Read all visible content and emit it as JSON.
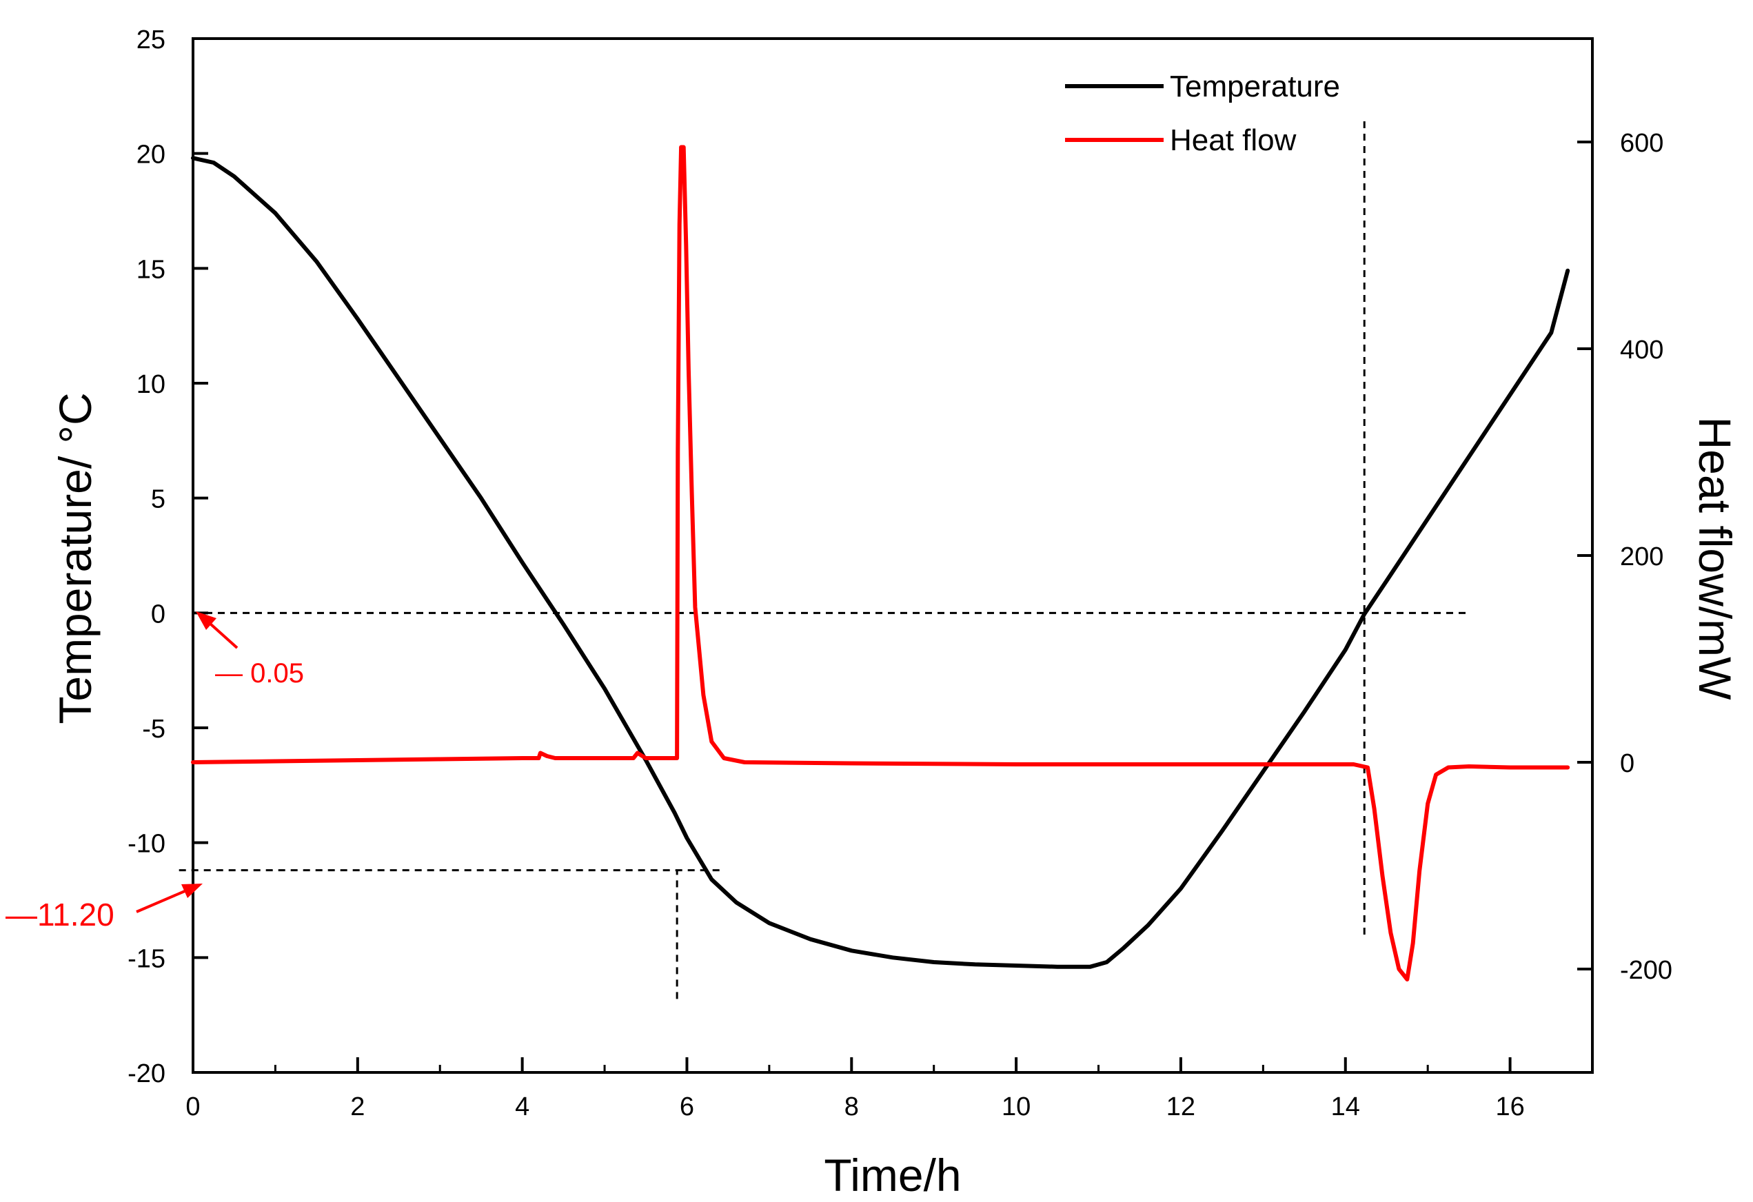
{
  "chart_data": {
    "type": "line",
    "title": "",
    "xlabel": "Time/h",
    "ylabel_left": "Temperature/ °C",
    "ylabel_right": "Heat flow/mW",
    "xlim": [
      0,
      17
    ],
    "ylim_left": [
      -20,
      25
    ],
    "ylim_right": [
      -300,
      700
    ],
    "x_ticks": [
      "0",
      "2",
      "4",
      "6",
      "8",
      "10",
      "12",
      "14",
      "16"
    ],
    "y_left_ticks": [
      "-20",
      "-15",
      "-10",
      "-5",
      "0",
      "5",
      "10",
      "15",
      "20",
      "25"
    ],
    "y_right_ticks": [
      "-200",
      "0",
      "200",
      "400",
      "600"
    ],
    "grid": false,
    "legend_position": "top-right",
    "colors": {
      "temperature": "#000000",
      "heat_flow": "#ff0000",
      "guide": "#000000"
    },
    "series": [
      {
        "name": "Temperature",
        "axis": "left",
        "color": "#000000",
        "x": [
          0,
          0.25,
          0.5,
          1.0,
          1.5,
          2.0,
          2.5,
          3.0,
          3.5,
          4.0,
          4.5,
          5.0,
          5.5,
          5.85,
          6.0,
          6.3,
          6.6,
          7.0,
          7.5,
          8.0,
          8.5,
          9.0,
          9.5,
          10.0,
          10.5,
          10.9,
          11.1,
          11.3,
          11.6,
          12.0,
          12.5,
          13.0,
          13.5,
          14.0,
          14.23,
          14.5,
          15.0,
          15.5,
          16.0,
          16.5,
          16.7
        ],
        "values": [
          19.8,
          19.6,
          19.0,
          17.4,
          15.3,
          12.8,
          10.2,
          7.6,
          5.0,
          2.2,
          -0.5,
          -3.3,
          -6.4,
          -8.7,
          -9.8,
          -11.6,
          -12.6,
          -13.5,
          -14.2,
          -14.7,
          -15.0,
          -15.2,
          -15.3,
          -15.35,
          -15.4,
          -15.4,
          -15.2,
          -14.6,
          -13.6,
          -12.0,
          -9.5,
          -6.9,
          -4.3,
          -1.6,
          -0.05,
          1.4,
          4.1,
          6.8,
          9.5,
          12.2,
          14.9
        ]
      },
      {
        "name": "Heat flow",
        "axis": "right",
        "color": "#ff0000",
        "x": [
          0,
          1.0,
          2.0,
          3.0,
          4.0,
          4.2,
          4.22,
          4.3,
          4.4,
          5.0,
          5.35,
          5.4,
          5.5,
          5.88,
          5.89,
          5.91,
          5.93,
          5.96,
          5.99,
          6.02,
          6.06,
          6.1,
          6.2,
          6.3,
          6.45,
          6.7,
          8.0,
          10.0,
          12.0,
          13.0,
          14.1,
          14.27,
          14.35,
          14.45,
          14.55,
          14.65,
          14.75,
          14.82,
          14.9,
          15.0,
          15.1,
          15.25,
          15.5,
          16.0,
          16.7
        ],
        "values": [
          0,
          1,
          2,
          3,
          4,
          4,
          9,
          6,
          4,
          4,
          4,
          9,
          4,
          4,
          300,
          520,
          595,
          595,
          500,
          380,
          260,
          150,
          65,
          20,
          4,
          0,
          -1,
          -2,
          -2,
          -2,
          -2,
          -5,
          -45,
          -110,
          -165,
          -200,
          -210,
          -175,
          -105,
          -40,
          -12,
          -5,
          -4,
          -5,
          -5
        ]
      }
    ],
    "annotations": [
      {
        "label": "— 0.05",
        "value": -0.05,
        "unit": "°C"
      },
      {
        "label": "—11.20",
        "value": -11.2,
        "unit": "°C"
      }
    ],
    "reference_lines": [
      {
        "orientation": "horizontal",
        "axis": "left",
        "value": 0,
        "x_from": 0,
        "x_to": 15.5
      },
      {
        "orientation": "horizontal",
        "axis": "left",
        "value": -11.2,
        "x_from": -0.17,
        "x_to": 6.45
      },
      {
        "orientation": "vertical",
        "x": 5.88,
        "axis": "left",
        "y_from": -16.8,
        "y_to": -11.2
      },
      {
        "orientation": "vertical",
        "x": 14.23,
        "axis": "left",
        "y_from": -14.0,
        "y_to": 21.5
      }
    ]
  }
}
